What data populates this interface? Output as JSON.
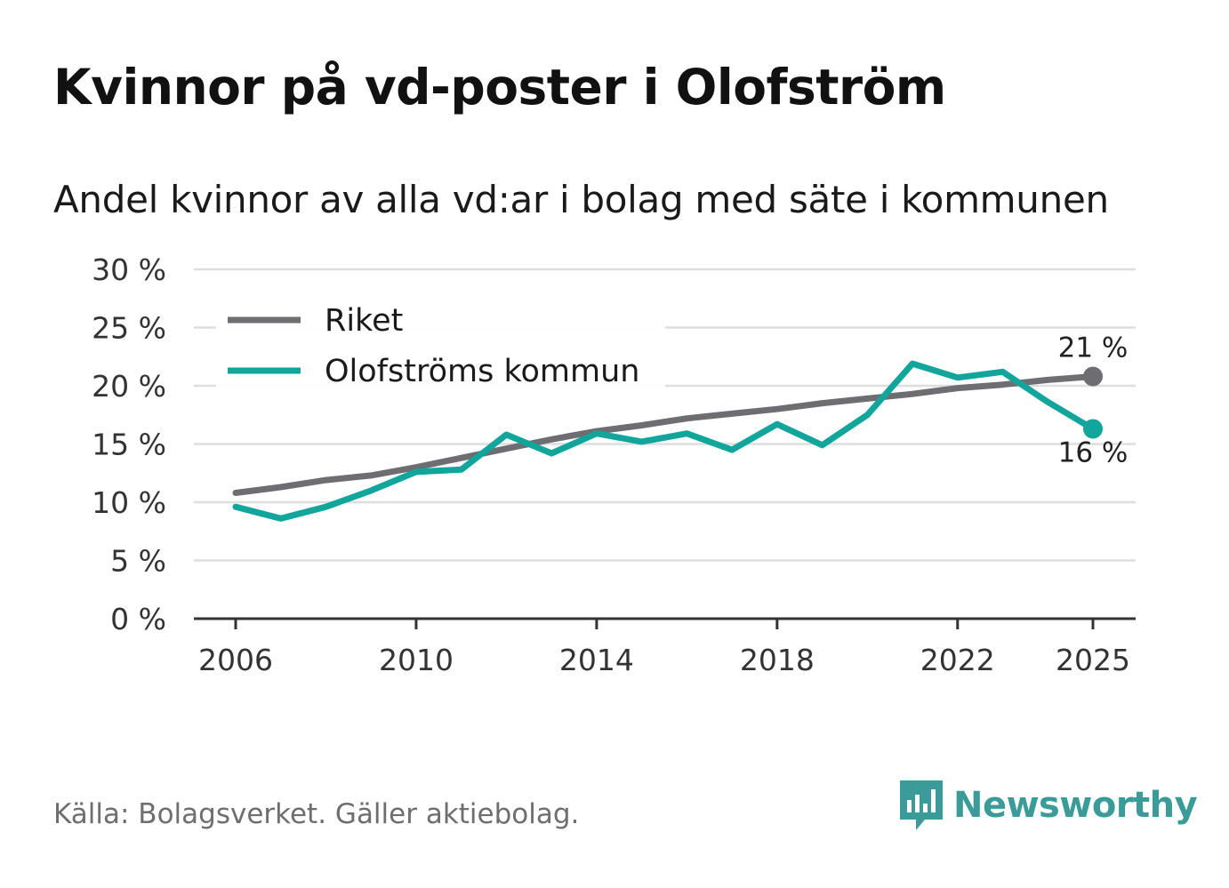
{
  "title": "Kvinnor på vd-poster i Olofström",
  "subtitle": "Andel kvinnor av alla vd:ar i bolag med säte i kommunen",
  "source": "Källa: Bolagsverket. Gäller aktiebolag.",
  "brand": {
    "name": "Newsworthy",
    "icon": "newsworthy-logo-icon",
    "color": "#3a9b98"
  },
  "chart_data": {
    "type": "line",
    "x": [
      2006,
      2007,
      2008,
      2009,
      2010,
      2011,
      2012,
      2013,
      2014,
      2015,
      2016,
      2017,
      2018,
      2019,
      2020,
      2021,
      2022,
      2023,
      2024,
      2025
    ],
    "x_ticks": [
      2006,
      2010,
      2014,
      2018,
      2022,
      2025
    ],
    "x_tick_labels": [
      "2006",
      "2010",
      "2014",
      "2018",
      "2022",
      "2025"
    ],
    "y_ticks": [
      0,
      5,
      10,
      15,
      20,
      25,
      30
    ],
    "y_tick_labels": [
      "0 %",
      "5 %",
      "10 %",
      "15 %",
      "20 %",
      "25 %",
      "30 %"
    ],
    "ylim": [
      0,
      30
    ],
    "xlim": [
      2006,
      2025
    ],
    "grid": true,
    "legend_position": "top-left",
    "series": [
      {
        "name": "Riket",
        "color": "#6d6d72",
        "values": [
          10.8,
          11.3,
          11.9,
          12.3,
          13.0,
          13.8,
          14.6,
          15.4,
          16.1,
          16.6,
          17.2,
          17.6,
          18.0,
          18.5,
          18.9,
          19.3,
          19.8,
          20.1,
          20.5,
          20.8
        ],
        "end_label": "21 %"
      },
      {
        "name": "Olofströms kommun",
        "color": "#12a59c",
        "values": [
          9.6,
          8.6,
          9.6,
          11.0,
          12.6,
          12.8,
          15.8,
          14.2,
          15.9,
          15.2,
          15.9,
          14.5,
          16.7,
          14.9,
          17.5,
          21.9,
          20.7,
          21.2,
          18.6,
          16.3
        ],
        "end_label": "16 %"
      }
    ]
  }
}
